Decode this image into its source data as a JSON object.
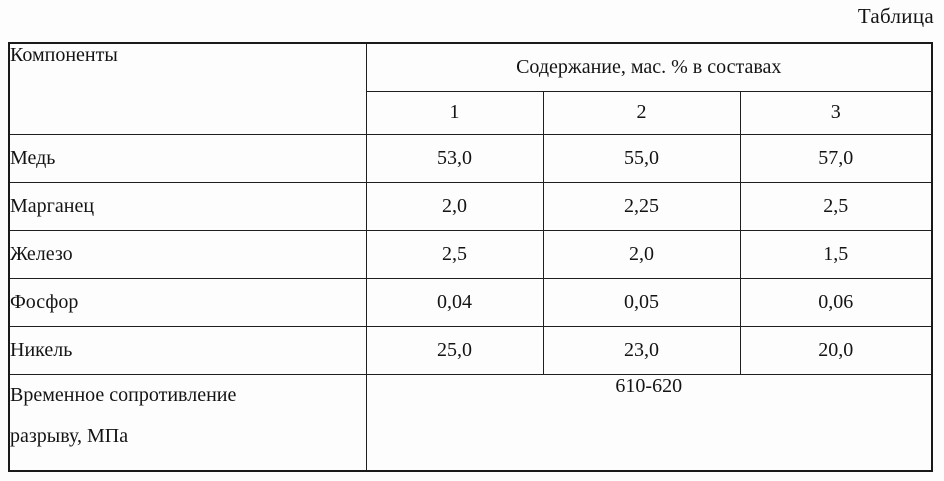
{
  "page": {
    "caption": "Таблица"
  },
  "table": {
    "header": {
      "components_label": "Компоненты",
      "content_label": "Содержание, мас. % в составах",
      "composition_columns": [
        "1",
        "2",
        "3"
      ]
    },
    "rows": [
      {
        "label": "Медь",
        "values": [
          "53,0",
          "55,0",
          "57,0"
        ]
      },
      {
        "label": "Марганец",
        "values": [
          "2,0",
          "2,25",
          "2,5"
        ]
      },
      {
        "label": "Железо",
        "values": [
          "2,5",
          "2,0",
          "1,5"
        ]
      },
      {
        "label": "Фосфор",
        "values": [
          "0,04",
          "0,05",
          "0,06"
        ]
      },
      {
        "label": "Никель",
        "values": [
          "25,0",
          "23,0",
          "20,0"
        ]
      }
    ],
    "footer_row": {
      "label_line1": "Временное сопротивление",
      "label_line2": "разрыву, МПа",
      "value": "610-620"
    }
  }
}
